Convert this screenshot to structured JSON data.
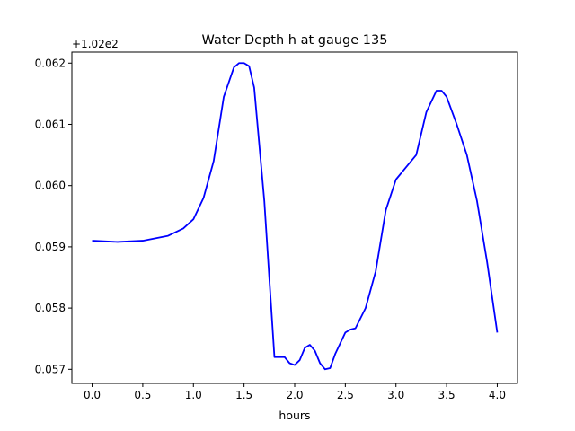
{
  "chart_data": {
    "type": "line",
    "title": "Water Depth h at gauge 135",
    "xlabel": "hours",
    "ylabel": "",
    "offset_label": "+1.02e2",
    "xlim": [
      -0.2,
      4.2
    ],
    "ylim": [
      0.05677,
      0.06218
    ],
    "xticks": [
      0.0,
      0.5,
      1.0,
      1.5,
      2.0,
      2.5,
      3.0,
      3.5,
      4.0
    ],
    "xtick_labels": [
      "0.0",
      "0.5",
      "1.0",
      "1.5",
      "2.0",
      "2.5",
      "3.0",
      "3.5",
      "4.0"
    ],
    "yticks": [
      0.057,
      0.058,
      0.059,
      0.06,
      0.061,
      0.062
    ],
    "ytick_labels": [
      "0.057",
      "0.058",
      "0.059",
      "0.060",
      "0.061",
      "0.062"
    ],
    "grid": false,
    "series": [
      {
        "color": "#0000ff",
        "x": [
          0.0,
          0.25,
          0.5,
          0.75,
          0.9,
          1.0,
          1.1,
          1.2,
          1.3,
          1.4,
          1.45,
          1.5,
          1.55,
          1.6,
          1.7,
          1.8,
          1.9,
          1.95,
          2.0,
          2.05,
          2.1,
          2.15,
          2.2,
          2.25,
          2.3,
          2.35,
          2.4,
          2.5,
          2.55,
          2.6,
          2.7,
          2.8,
          2.9,
          3.0,
          3.1,
          3.2,
          3.3,
          3.4,
          3.45,
          3.5,
          3.6,
          3.7,
          3.8,
          3.9,
          4.0
        ],
        "y": [
          0.0591,
          0.05908,
          0.0591,
          0.05918,
          0.0593,
          0.05945,
          0.0598,
          0.0604,
          0.06145,
          0.06193,
          0.062,
          0.062,
          0.06195,
          0.0616,
          0.05975,
          0.0572,
          0.0572,
          0.0571,
          0.05707,
          0.05715,
          0.05735,
          0.0574,
          0.0573,
          0.0571,
          0.057,
          0.05702,
          0.05725,
          0.0576,
          0.05765,
          0.05767,
          0.058,
          0.0586,
          0.0596,
          0.0601,
          0.0603,
          0.0605,
          0.0612,
          0.06155,
          0.06155,
          0.06145,
          0.061,
          0.0605,
          0.05975,
          0.05875,
          0.0576
        ]
      }
    ]
  }
}
